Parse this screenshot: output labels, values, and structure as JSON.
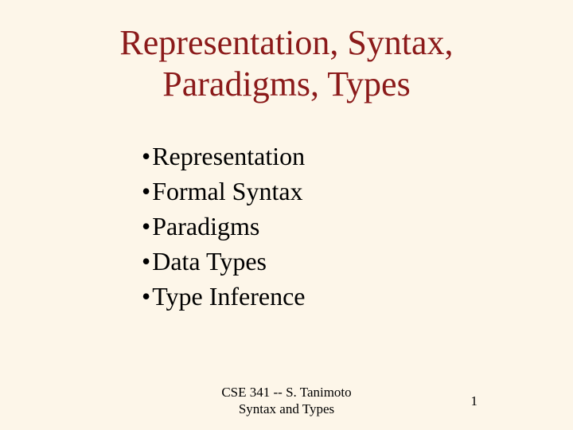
{
  "colors": {
    "background": "#fdf6e9",
    "title": "#8b1a1a",
    "body_text": "#000000",
    "footer_text": "#000000"
  },
  "title": {
    "line1": "Representation, Syntax,",
    "line2": "Paradigms, Types",
    "fontsize": 44
  },
  "bullets": {
    "items": [
      "Representation",
      "Formal Syntax",
      "Paradigms",
      "Data Types",
      "Type Inference"
    ],
    "fontsize": 32,
    "bullet_char": "•"
  },
  "footer": {
    "line1": "CSE 341 -- S. Tanimoto",
    "line2": "Syntax and Types",
    "fontsize": 17
  },
  "page_number": "1"
}
